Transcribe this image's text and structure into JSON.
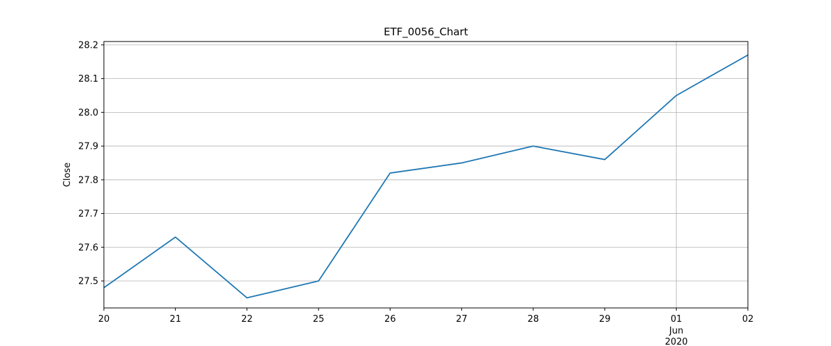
{
  "chart_data": {
    "type": "line",
    "title": "ETF_0056_Chart",
    "xlabel": "",
    "ylabel": "Close",
    "x": [
      "2020-05-20",
      "2020-05-21",
      "2020-05-22",
      "2020-05-25",
      "2020-05-26",
      "2020-05-27",
      "2020-05-28",
      "2020-05-29",
      "2020-06-01",
      "2020-06-02"
    ],
    "x_tick_labels": [
      "20",
      "21",
      "22",
      "25",
      "26",
      "27",
      "28",
      "29",
      "01",
      "02"
    ],
    "x_secondary_label": {
      "index": 8,
      "month": "Jun",
      "year": "2020"
    },
    "series": [
      {
        "values": [
          27.48,
          27.63,
          27.45,
          27.5,
          27.82,
          27.85,
          27.9,
          27.86,
          28.05,
          28.17
        ],
        "color": "#1f77b4"
      }
    ],
    "y_ticks": [
      "27.5",
      "27.6",
      "27.7",
      "27.8",
      "27.9",
      "28.0",
      "28.1",
      "28.2"
    ],
    "ylim": [
      27.42,
      28.21
    ],
    "grid": true,
    "grid_x_major_index": 8
  }
}
